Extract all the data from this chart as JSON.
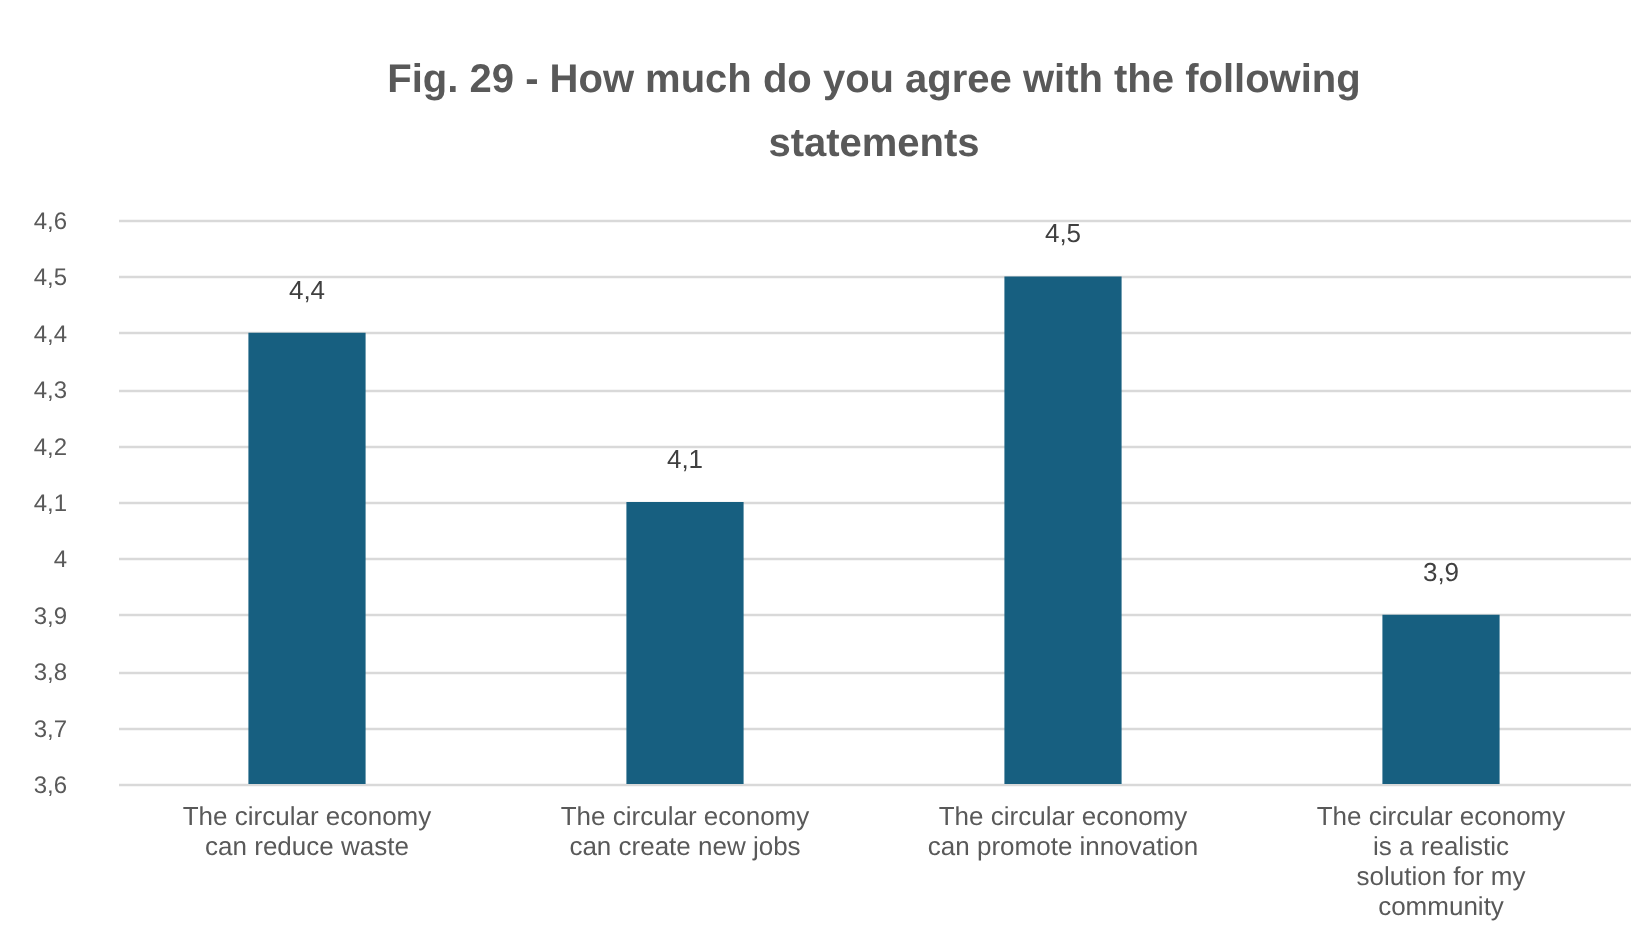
{
  "chart_data": {
    "type": "bar",
    "title": "Fig. 29 - How much do you agree with the following statements",
    "categories": [
      "The circular economy can reduce waste",
      "The circular economy can create new jobs",
      "The circular economy can promote innovation",
      "The circular economy is a realistic solution for my community"
    ],
    "values": [
      4.4,
      4.1,
      4.5,
      3.9
    ],
    "color": "#175f80",
    "value_labels": [
      "4,4",
      "4,1",
      "4,5",
      "3,9"
    ],
    "ylim": [
      3.6,
      4.6
    ],
    "yticks": [
      {
        "value": 3.6,
        "label": "3,6"
      },
      {
        "value": 3.7,
        "label": "3,7"
      },
      {
        "value": 3.8,
        "label": "3,8"
      },
      {
        "value": 3.9,
        "label": "3,9"
      },
      4,
      {
        "value": 4.1,
        "label": "4,1"
      },
      {
        "value": 4.2,
        "label": "4,2"
      },
      {
        "value": 4.3,
        "label": "4,3"
      },
      {
        "value": 4.4,
        "label": "4,4"
      },
      {
        "value": 4.5,
        "label": "4,5"
      },
      {
        "value": 4.6,
        "label": "4,6"
      }
    ],
    "grid": "y"
  }
}
